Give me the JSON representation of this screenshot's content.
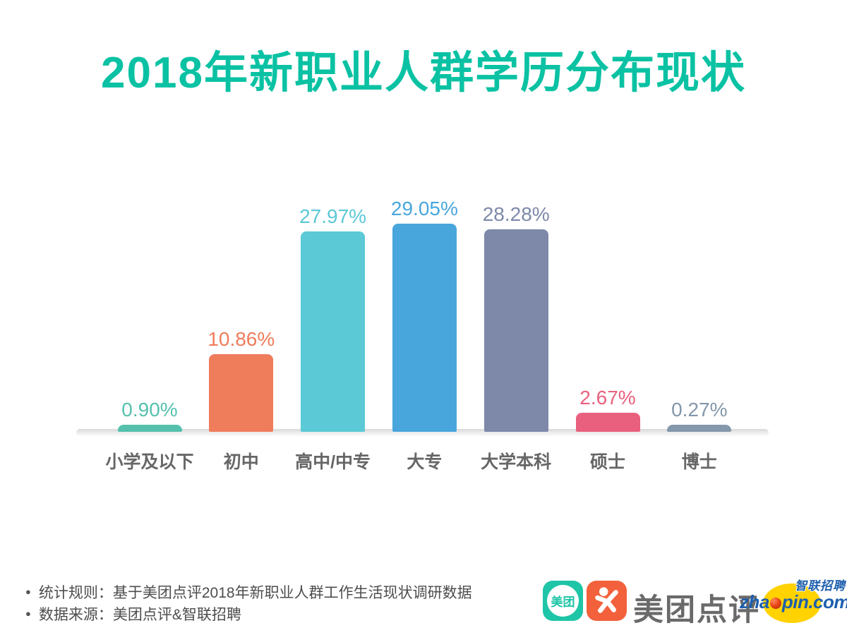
{
  "title": "2018年新职业人群学历分布现状",
  "title_color": "#0ac2a3",
  "chart_data": {
    "type": "bar",
    "title": "2018年新职业人群学历分布现状",
    "categories": [
      "小学及以下",
      "初中",
      "高中/中专",
      "大专",
      "大学本科",
      "硕士",
      "博士"
    ],
    "values": [
      0.9,
      10.86,
      27.97,
      29.05,
      28.28,
      2.67,
      0.27
    ],
    "value_labels": [
      "0.90%",
      "10.86%",
      "27.97%",
      "29.05%",
      "28.28%",
      "2.67%",
      "0.27%"
    ],
    "bar_colors": [
      "#55c1ad",
      "#ef7c5b",
      "#5bc9d6",
      "#48a6dd",
      "#7e89a9",
      "#e9607e",
      "#8497ab"
    ],
    "xlabel": "",
    "ylabel": "",
    "ylim": [
      0,
      32
    ],
    "grid": false,
    "legend": "none",
    "value_label_position": "above-bar",
    "value_label_colors_match_bars": true,
    "category_label_color": "#666666"
  },
  "footer": {
    "bullet_char": "●",
    "notes": [
      {
        "text": "统计规则：基于美团点评2018年新职业人群工作生活现状调研数据"
      },
      {
        "text": "数据来源：美团点评&智联招聘"
      }
    ]
  },
  "branding": {
    "meituan_badge_text": "美团",
    "meituan_color": "#1ec5a7",
    "dianping_color": "#f2613b",
    "brand_name": "美团点评",
    "zhaopin": {
      "url_prefix": "zha",
      "url_suffix": "pin.com",
      "cn_text": "智联招聘",
      "blue": "#1d5fae",
      "yellow": "#ffd200"
    }
  }
}
